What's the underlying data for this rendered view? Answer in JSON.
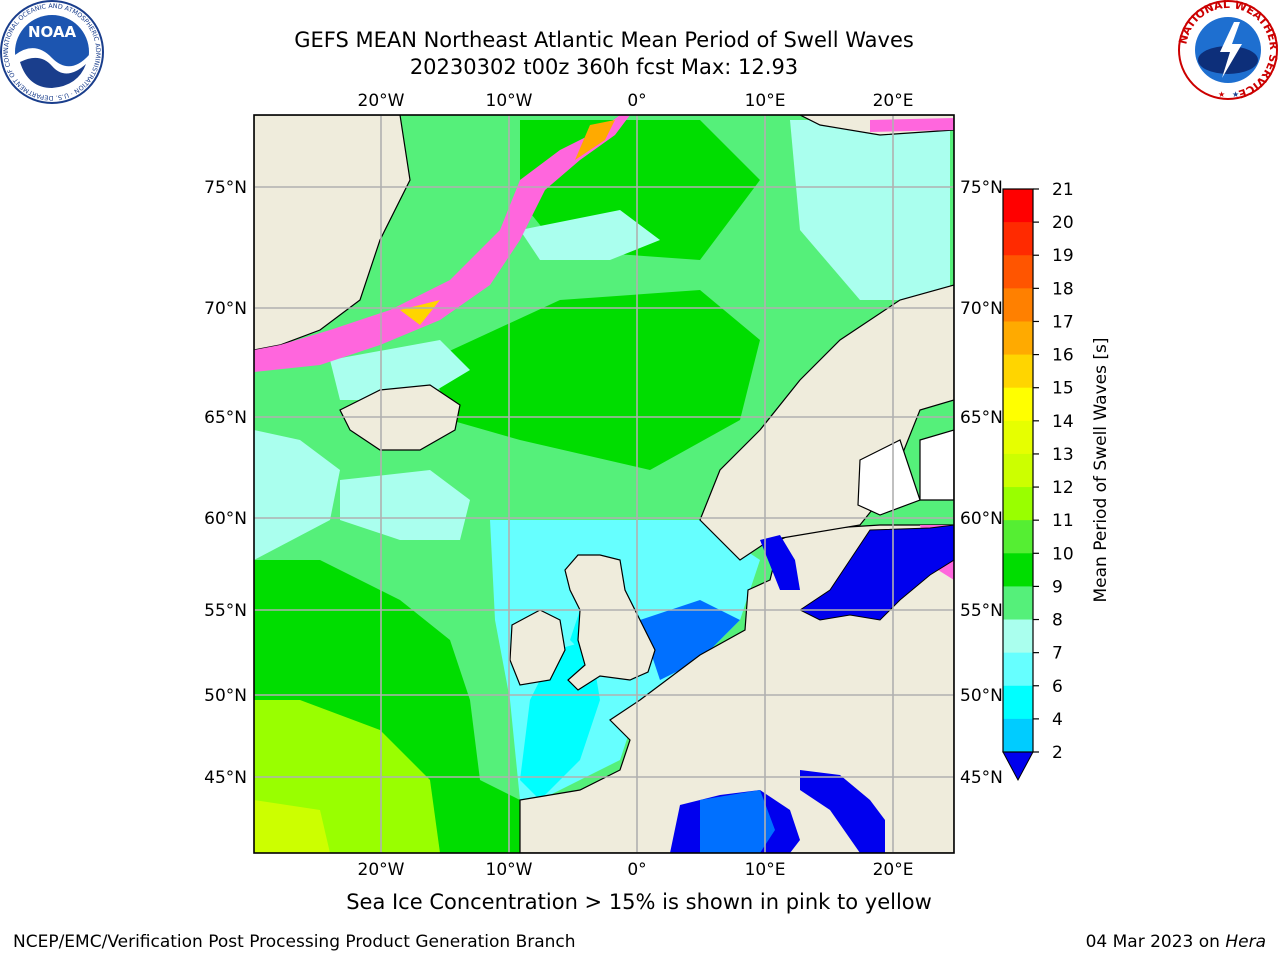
{
  "header": {
    "title_line1": "GEFS MEAN Northeast Atlantic Mean Period of Swell Waves",
    "title_line2": "20230302 t00z 360h fcst   Max: 12.93"
  },
  "map": {
    "lon_labels_top": [
      "20°W",
      "10°W",
      "0°",
      "10°E",
      "20°E"
    ],
    "lon_labels_bottom": [
      "20°W",
      "10°W",
      "0°",
      "10°E",
      "20°E"
    ],
    "lat_labels_left": [
      "75°N",
      "70°N",
      "65°N",
      "60°N",
      "55°N",
      "50°N",
      "45°N"
    ],
    "lat_labels_right": [
      "75°N",
      "70°N",
      "65°N",
      "60°N",
      "55°N",
      "50°N",
      "45°N"
    ],
    "land_color": "#efecdc",
    "grid_color": "#b0b0b0"
  },
  "colorbar": {
    "label": "Mean Period of Swell Waves [s]",
    "ticks": [
      "21",
      "20",
      "19",
      "18",
      "17",
      "16",
      "15",
      "14",
      "13",
      "12",
      "11",
      "10",
      "9",
      "8",
      "7",
      "6",
      "4",
      "2"
    ],
    "colors": [
      "#ff0000",
      "#ff2a00",
      "#ff5500",
      "#ff8000",
      "#ffaa00",
      "#ffd500",
      "#ffff00",
      "#e6ff00",
      "#ccff00",
      "#99ff00",
      "#55ee33",
      "#00dd00",
      "#55f07a",
      "#aaffee",
      "#66ffff",
      "#00ffff",
      "#00ccff",
      "#0070ff",
      "#0000ee"
    ]
  },
  "footer": {
    "caption": "Sea Ice Concentration > 15% is shown in pink to yellow",
    "credit": "NCEP/EMC/Verification Post Processing Product Generation Branch",
    "date_prefix": "04 Mar 2023 on ",
    "date_host": "Hera"
  },
  "logos": {
    "noaa_text": "NOAA",
    "noaa_ring": "NATIONAL OCEANIC AND ATMOSPHERIC ADMINISTRATION · U.S. DEPARTMENT OF COMMERCE",
    "nws_ring": "NATIONAL WEATHER SERVICE"
  }
}
